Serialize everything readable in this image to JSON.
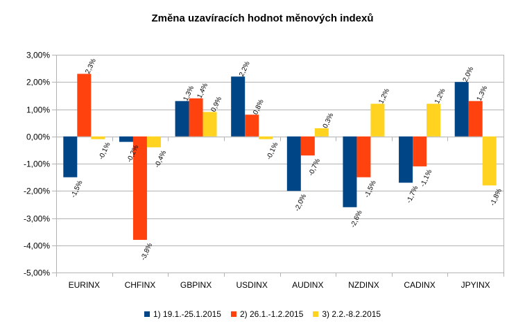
{
  "chart_data": {
    "type": "bar",
    "title": "Změna uzavíracích hodnot měnových indexů",
    "xlabel": "",
    "ylabel": "",
    "ylim": [
      -5,
      3
    ],
    "yticks": [
      3,
      2,
      1,
      0,
      -1,
      -2,
      -3,
      -4,
      -5
    ],
    "ytick_labels": [
      "3,00%",
      "2,00%",
      "1,00%",
      "0,00%",
      "-1,00%",
      "-2,00%",
      "-3,00%",
      "-4,00%",
      "-5,00%"
    ],
    "grid": true,
    "legend_position": "bottom",
    "categories": [
      "EURINX",
      "CHFINX",
      "GBPINX",
      "USDINX",
      "AUDINX",
      "NZDINX",
      "CADINX",
      "JPYINX"
    ],
    "series": [
      {
        "name": "1) 19.1.-25.1.2015",
        "color": "#004586",
        "values": [
          -1.5,
          -0.2,
          1.3,
          2.2,
          -2.0,
          -2.6,
          -1.7,
          2.0
        ],
        "labels": [
          "-1,5%",
          "-0,2%",
          "1,3%",
          "2,2%",
          "-2,0%",
          "-2,6%",
          "-1,7%",
          "2,0%"
        ]
      },
      {
        "name": "2) 26.1.-1.2.2015",
        "color": "#ff420e",
        "values": [
          2.3,
          -3.8,
          1.4,
          0.8,
          -0.7,
          -1.5,
          -1.1,
          1.3
        ],
        "labels": [
          "2,3%",
          "-3,8%",
          "1,4%",
          "0,8%",
          "-0,7%",
          "-1,5%",
          "-1,1%",
          "1,3%"
        ]
      },
      {
        "name": "3) 2.2.-8.2.2015",
        "color": "#ffd320",
        "values": [
          -0.1,
          -0.4,
          0.9,
          -0.1,
          0.3,
          1.2,
          1.2,
          -1.8
        ],
        "labels": [
          "-0,1%",
          "-0,4%",
          "0,9%",
          "-0,1%",
          "0,3%",
          "1,2%",
          "1,2%",
          "-1,8%"
        ]
      }
    ]
  }
}
